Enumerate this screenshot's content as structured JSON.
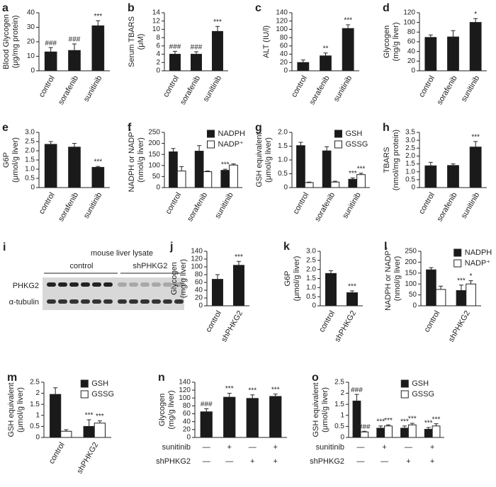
{
  "chart_data": [
    {
      "type": "bar",
      "panel": "a",
      "ylabel": [
        "Blood Glycogen",
        "(μg/mg protein)"
      ],
      "categories": [
        "control",
        "sorafenib",
        "sunitinib"
      ],
      "values": [
        13,
        14,
        31
      ],
      "errors": [
        3,
        4.5,
        3.5
      ],
      "marks": [
        "###",
        "###",
        "***"
      ],
      "color": "#1a1a1a",
      "ylim": [
        0,
        40
      ],
      "yticks": [
        0,
        10,
        20,
        30,
        40
      ]
    },
    {
      "type": "bar",
      "panel": "b",
      "ylabel": [
        "Serum TBARS",
        "(μM)"
      ],
      "categories": [
        "control",
        "sorafenib",
        "sunitinib"
      ],
      "values": [
        4,
        4,
        9.5
      ],
      "errors": [
        0.7,
        0.6,
        1.2
      ],
      "marks": [
        "###",
        "###",
        "***"
      ],
      "color": "#1a1a1a",
      "ylim": [
        0,
        14
      ],
      "yticks": [
        0,
        2,
        4,
        6,
        8,
        10,
        12,
        14
      ]
    },
    {
      "type": "bar",
      "panel": "c",
      "ylabel": [
        "ALT (IU/l)"
      ],
      "categories": [
        "control",
        "sorafenib",
        "sunitinib"
      ],
      "values": [
        20,
        36,
        102
      ],
      "errors": [
        6,
        7,
        9
      ],
      "marks": [
        null,
        "**",
        "***"
      ],
      "color": "#1a1a1a",
      "ylim": [
        0,
        140
      ],
      "yticks": [
        0,
        20,
        40,
        60,
        80,
        100,
        120,
        140
      ]
    },
    {
      "type": "bar",
      "panel": "d",
      "ylabel": [
        "Glycogen",
        "(mg/g liver)"
      ],
      "categories": [
        "control",
        "sorafenib",
        "sunitinib"
      ],
      "values": [
        69,
        70,
        100
      ],
      "errors": [
        5,
        13,
        8
      ],
      "marks": [
        null,
        null,
        "*"
      ],
      "color": "#1a1a1a",
      "ylim": [
        0,
        120
      ],
      "yticks": [
        0,
        20,
        40,
        60,
        80,
        100,
        120
      ]
    },
    {
      "type": "bar",
      "panel": "e",
      "ylabel": [
        "G6P",
        "(μmol/g liver)"
      ],
      "categories": [
        "control",
        "sorafenib",
        "sunitinib"
      ],
      "values": [
        2.35,
        2.2,
        1.1
      ],
      "errors": [
        0.15,
        0.2,
        0.05
      ],
      "marks": [
        null,
        null,
        "***"
      ],
      "color": "#1a1a1a",
      "ylim": [
        0,
        3
      ],
      "yticks": [
        0,
        0.5,
        {
          "value": 1,
          "label": "1.0"
        },
        1.5,
        {
          "value": 2,
          "label": "2.0"
        },
        2.5,
        {
          "value": 3,
          "label": "3.0"
        }
      ]
    },
    {
      "type": "bar",
      "panel": "f",
      "ylabel": [
        "NADPH or NADP⁺",
        "(nmol/g liver)"
      ],
      "categories": [
        "control",
        "sorafenib",
        "sunitinib"
      ],
      "series": [
        {
          "name": "NADPH",
          "color": "#1a1a1a",
          "values": [
            162,
            165,
            78
          ],
          "errors": [
            15,
            25,
            5
          ],
          "marks": [
            null,
            null,
            "***"
          ]
        },
        {
          "name": "NADP⁺",
          "color": "#ffffff",
          "values": [
            75,
            72,
            102
          ],
          "errors": [
            20,
            3,
            5
          ],
          "marks": [
            null,
            null,
            null
          ]
        }
      ],
      "ylim": [
        0,
        250
      ],
      "yticks": [
        0,
        50,
        100,
        150,
        200,
        250
      ],
      "legend": "upper right"
    },
    {
      "type": "bar",
      "panel": "g",
      "ylabel": [
        "GSH equivalent",
        "(μmol/g liver)"
      ],
      "categories": [
        "control",
        "sorafenib",
        "sunitinib"
      ],
      "series": [
        {
          "name": "GSH",
          "color": "#1a1a1a",
          "values": [
            1.52,
            1.33,
            0.3
          ],
          "errors": [
            0.12,
            0.15,
            0.05
          ],
          "marks": [
            null,
            null,
            "***"
          ]
        },
        {
          "name": "GSSG",
          "color": "#ffffff",
          "values": [
            0.18,
            0.2,
            0.47
          ],
          "errors": [
            0.02,
            0.03,
            0.05
          ],
          "marks": [
            null,
            null,
            "***"
          ]
        }
      ],
      "ylim": [
        0,
        2
      ],
      "yticks": [
        0,
        0.5,
        {
          "value": 1,
          "label": "1.0"
        },
        1.5,
        {
          "value": 2,
          "label": "2.0"
        }
      ],
      "legend": "upper right"
    },
    {
      "type": "bar",
      "panel": "h",
      "ylabel": [
        "TBARS",
        "(nmol/mg protein)"
      ],
      "categories": [
        "control",
        "sorafenib",
        "sunitinib"
      ],
      "values": [
        1.38,
        1.4,
        2.57
      ],
      "errors": [
        0.22,
        0.1,
        0.35
      ],
      "marks": [
        null,
        null,
        "***"
      ],
      "color": "#1a1a1a",
      "ylim": [
        0,
        3.5
      ],
      "yticks": [
        0,
        0.5,
        {
          "value": 1,
          "label": "1.0"
        },
        1.5,
        {
          "value": 2,
          "label": "2.0"
        },
        2.5,
        {
          "value": 3,
          "label": "3.0"
        },
        3.5
      ]
    },
    {
      "type": "bar",
      "panel": "j",
      "ylabel": [
        "Glycogen",
        "(mg/g liver)"
      ],
      "categories": [
        "control",
        "shPHKG2"
      ],
      "values": [
        68,
        104
      ],
      "errors": [
        12,
        10
      ],
      "marks": [
        null,
        "***"
      ],
      "color": "#1a1a1a",
      "ylim": [
        0,
        140
      ],
      "yticks": [
        0,
        20,
        40,
        60,
        80,
        100,
        120,
        140
      ]
    },
    {
      "type": "bar",
      "panel": "k",
      "ylabel": [
        "G6P",
        "(μmol/g liver)"
      ],
      "categories": [
        "control",
        "shPHKG2"
      ],
      "values": [
        1.78,
        0.72
      ],
      "errors": [
        0.15,
        0.1
      ],
      "marks": [
        null,
        "***"
      ],
      "color": "#1a1a1a",
      "ylim": [
        0,
        3
      ],
      "yticks": [
        0,
        0.5,
        {
          "value": 1,
          "label": "1.0"
        },
        1.5,
        {
          "value": 2,
          "label": "2.0"
        },
        2.5,
        {
          "value": 3,
          "label": "3.0"
        }
      ]
    },
    {
      "type": "bar",
      "panel": "l",
      "ylabel": [
        "NADPH or NADP⁺",
        "(nmol/g liver)"
      ],
      "categories": [
        "control",
        "shPHKG2"
      ],
      "series": [
        {
          "name": "NADPH",
          "color": "#1a1a1a",
          "values": [
            165,
            70
          ],
          "errors": [
            10,
            25
          ],
          "marks": [
            null,
            "***"
          ]
        },
        {
          "name": "NADP⁺",
          "color": "#ffffff",
          "values": [
            75,
            100
          ],
          "errors": [
            15,
            15
          ],
          "marks": [
            null,
            "*"
          ]
        }
      ],
      "ylim": [
        0,
        250
      ],
      "yticks": [
        0,
        50,
        100,
        150,
        200,
        250
      ],
      "legend": "upper right"
    },
    {
      "type": "bar",
      "panel": "m",
      "ylabel": [
        "GSH equivalent",
        "(μmol/g liver)"
      ],
      "categories": [
        "control",
        "shPHKG2"
      ],
      "series": [
        {
          "name": "GSH",
          "color": "#1a1a1a",
          "values": [
            1.95,
            0.5
          ],
          "errors": [
            0.3,
            0.3
          ],
          "marks": [
            null,
            "***"
          ]
        },
        {
          "name": "GSSG",
          "color": "#ffffff",
          "values": [
            0.28,
            0.65
          ],
          "errors": [
            0.07,
            0.1
          ],
          "marks": [
            null,
            "***"
          ]
        }
      ],
      "ylim": [
        0,
        2.5
      ],
      "yticks": [
        0,
        0.5,
        1,
        1.5,
        2,
        2.5
      ],
      "legend": "upper right"
    },
    {
      "type": "bar",
      "panel": "n",
      "ylabel": [
        "Glycogen",
        "(mg/g liver)"
      ],
      "factors": [
        {
          "name": "sunitinib",
          "levels": [
            "—",
            "+",
            "—",
            "+"
          ]
        },
        {
          "name": "shPHKG2",
          "levels": [
            "—",
            "—",
            "+",
            "+"
          ]
        }
      ],
      "values": [
        65,
        102,
        99,
        104
      ],
      "errors": [
        8,
        10,
        9,
        6
      ],
      "marks": [
        "###",
        "***",
        "***",
        "***"
      ],
      "color": "#1a1a1a",
      "ylim": [
        0,
        140
      ],
      "yticks": [
        0,
        20,
        40,
        60,
        80,
        100,
        120,
        140
      ]
    },
    {
      "type": "bar",
      "panel": "o",
      "ylabel": [
        "GSH equivalent",
        "(μmol/g liver)"
      ],
      "factors": [
        {
          "name": "sunitinib",
          "levels": [
            "—",
            "+",
            "—",
            "+"
          ]
        },
        {
          "name": "shPHKG2",
          "levels": [
            "—",
            "—",
            "+",
            "+"
          ]
        }
      ],
      "series": [
        {
          "name": "GSH",
          "color": "#1a1a1a",
          "values": [
            1.65,
            0.42,
            0.42,
            0.37
          ],
          "errors": [
            0.3,
            0.1,
            0.1,
            0.08
          ],
          "marks": [
            "###",
            "***",
            "***",
            "***"
          ]
        },
        {
          "name": "GSSG",
          "color": "#ffffff",
          "values": [
            0.25,
            0.52,
            0.57,
            0.52
          ],
          "errors": [
            0.03,
            0.05,
            0.07,
            0.1
          ],
          "marks": [
            "###",
            "***",
            "***",
            "***"
          ]
        }
      ],
      "ylim": [
        0,
        2.5
      ],
      "yticks": [
        0,
        0.5,
        1,
        1.5,
        2,
        2.5
      ],
      "legend": "upper right"
    }
  ],
  "blot": {
    "panel": "i",
    "title": "mouse liver lysate",
    "groups": [
      "control",
      "shPHKG2"
    ],
    "rows": [
      "PHKG2",
      "α-tubulin"
    ]
  }
}
